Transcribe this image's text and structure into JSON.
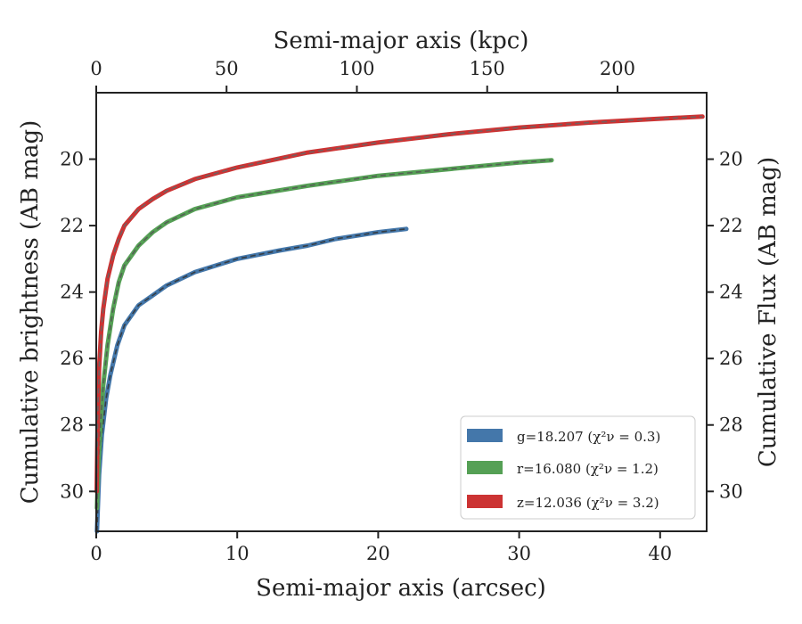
{
  "chart_data": {
    "type": "line",
    "xlabel": "Semi-major axis (arcsec)",
    "ylabel": "Cumulative brightness (AB mag)",
    "x2label": "Semi-major axis (kpc)",
    "y2label": "Cumulative Flux (AB mag)",
    "xlim": [
      0,
      43.3
    ],
    "ylim": [
      31.2,
      18.0
    ],
    "x2lim": [
      0,
      234.2
    ],
    "y_inverted": true,
    "xticks": [
      0,
      10,
      20,
      30,
      40
    ],
    "yticks": [
      20,
      22,
      24,
      26,
      28,
      30
    ],
    "x2ticks": [
      0,
      50,
      100,
      150,
      200
    ],
    "y2ticks": [
      20,
      22,
      24,
      26,
      28,
      30
    ],
    "xtick_labels": [
      "0",
      "10",
      "20",
      "30",
      "40"
    ],
    "ytick_labels": [
      "20",
      "22",
      "24",
      "26",
      "28",
      "30"
    ],
    "x2tick_labels": [
      "0",
      "50",
      "100",
      "150",
      "200"
    ],
    "y2tick_labels": [
      "20",
      "22",
      "24",
      "26",
      "28",
      "30"
    ],
    "grid": false,
    "legend_position": "bottom-right",
    "series": [
      {
        "name": "g=18.207 (χ²ν = 0.3)",
        "band": "g",
        "color": "#4477aa",
        "fit_color": "#333333",
        "x": [
          0.05,
          0.2,
          0.4,
          0.7,
          1.0,
          1.5,
          2.0,
          3.0,
          4.0,
          5.0,
          7.0,
          10.0,
          13.0,
          15.0,
          17.0,
          20.0,
          22.0
        ],
        "y": [
          31.2,
          29.5,
          28.3,
          27.2,
          26.5,
          25.6,
          25.0,
          24.4,
          24.1,
          23.8,
          23.4,
          23.0,
          22.75,
          22.6,
          22.4,
          22.2,
          22.1
        ]
      },
      {
        "name": "r=16.080 (χ²ν = 1.2)",
        "band": "r",
        "color": "#55a055",
        "fit_color": "#555555",
        "x": [
          0.05,
          0.15,
          0.3,
          0.5,
          0.8,
          1.2,
          1.6,
          2.0,
          3.0,
          4.0,
          5.0,
          7.0,
          10.0,
          15.0,
          20.0,
          25.0,
          30.0,
          32.3
        ],
        "y": [
          30.5,
          29.2,
          28.0,
          26.8,
          25.6,
          24.5,
          23.7,
          23.2,
          22.6,
          22.2,
          21.9,
          21.5,
          21.15,
          20.8,
          20.5,
          20.3,
          20.1,
          20.03
        ]
      },
      {
        "name": "z=12.036 (χ²ν = 3.2)",
        "band": "z",
        "color": "#cc3333",
        "fit_color": "#666666",
        "x": [
          0.03,
          0.1,
          0.2,
          0.35,
          0.5,
          0.8,
          1.2,
          1.6,
          2.0,
          3.0,
          4.0,
          5.0,
          7.0,
          10.0,
          15.0,
          20.0,
          25.0,
          30.0,
          35.0,
          40.0,
          43.0
        ],
        "y": [
          30.0,
          27.8,
          26.3,
          25.2,
          24.5,
          23.6,
          22.9,
          22.4,
          22.0,
          21.5,
          21.2,
          20.95,
          20.6,
          20.25,
          19.8,
          19.5,
          19.25,
          19.05,
          18.9,
          18.78,
          18.72
        ]
      }
    ]
  }
}
